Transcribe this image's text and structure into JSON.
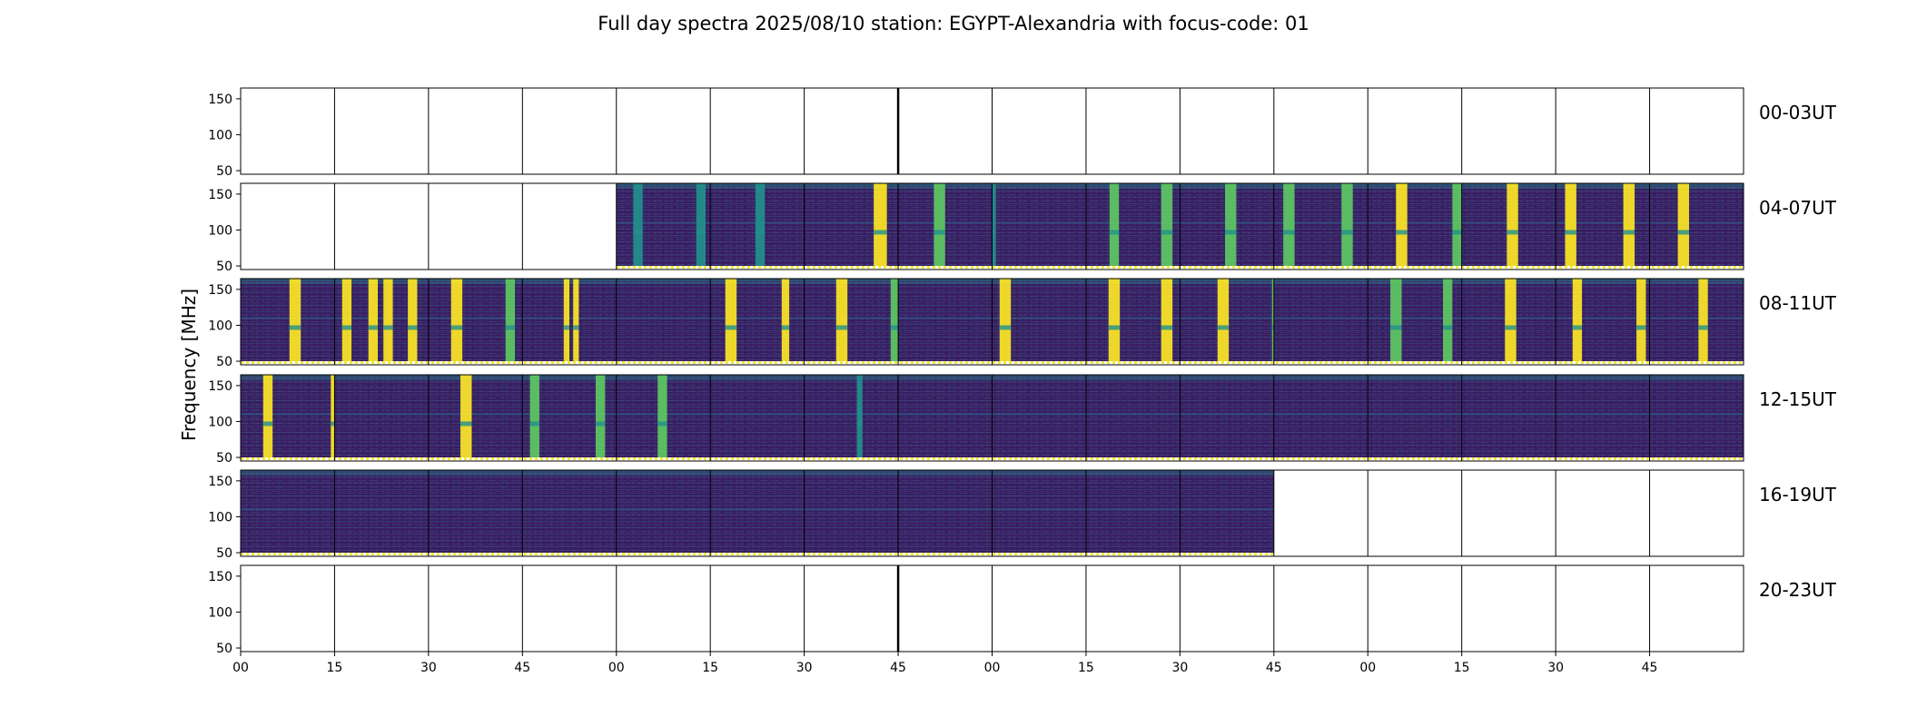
{
  "chart_data": {
    "type": "heatmap",
    "title": "Full day spectra 2025/08/10 station: EGYPT-Alexandria with focus-code: 01",
    "ylabel": "Frequency [MHz]",
    "xlabel": "",
    "ylim": [
      45,
      165
    ],
    "y_ticks": [
      "50",
      "100",
      "150"
    ],
    "x_ticks": [
      "00",
      "15",
      "30",
      "45",
      "00",
      "15",
      "30",
      "45",
      "00",
      "15",
      "30",
      "45",
      "00",
      "15",
      "30",
      "45"
    ],
    "row_labels": [
      "00-03UT",
      "04-07UT",
      "08-11UT",
      "12-15UT",
      "16-19UT",
      "20-23UT"
    ],
    "panels_per_row": 16,
    "panel_minutes": 15,
    "colormap": "viridis",
    "colors": {
      "empty": "#ffffff",
      "background": "#3b1f63",
      "dark": "#30125a",
      "mid": "#2f5f8d",
      "teal": "#21918c",
      "green": "#5ec962",
      "yellow": "#fde725",
      "marker": "#f4ea3a",
      "frame": "#000000"
    },
    "data_panels": [
      {
        "row": 1,
        "from": 4,
        "to": 15
      },
      {
        "row": 2,
        "from": 0,
        "to": 15
      },
      {
        "row": 3,
        "from": 0,
        "to": 15
      },
      {
        "row": 4,
        "from": 0,
        "to": 10
      }
    ],
    "bursts": [
      {
        "row": 1,
        "panel": 4,
        "x": [
          0.18,
          0.28
        ],
        "level": "teal"
      },
      {
        "row": 1,
        "panel": 4,
        "x": [
          0.85,
          0.95
        ],
        "level": "teal"
      },
      {
        "row": 1,
        "panel": 5,
        "x": [
          0.48,
          0.58
        ],
        "level": "teal"
      },
      {
        "row": 1,
        "panel": 6,
        "x": [
          0.74,
          0.88
        ],
        "level": "yellow"
      },
      {
        "row": 1,
        "panel": 7,
        "x": [
          0.38,
          0.5
        ],
        "level": "green"
      },
      {
        "row": 1,
        "panel": 8,
        "x": [
          0.0,
          0.04
        ],
        "level": "teal"
      },
      {
        "row": 1,
        "panel": 9,
        "x": [
          0.25,
          0.35
        ],
        "level": "green"
      },
      {
        "row": 1,
        "panel": 9,
        "x": [
          0.8,
          0.92
        ],
        "level": "green"
      },
      {
        "row": 1,
        "panel": 10,
        "x": [
          0.48,
          0.6
        ],
        "level": "green"
      },
      {
        "row": 1,
        "panel": 11,
        "x": [
          0.1,
          0.22
        ],
        "level": "green"
      },
      {
        "row": 1,
        "panel": 11,
        "x": [
          0.72,
          0.84
        ],
        "level": "green"
      },
      {
        "row": 1,
        "panel": 12,
        "x": [
          0.3,
          0.42
        ],
        "level": "yellow"
      },
      {
        "row": 1,
        "panel": 12,
        "x": [
          0.9,
          1.0
        ],
        "level": "green"
      },
      {
        "row": 1,
        "panel": 13,
        "x": [
          0.48,
          0.6
        ],
        "level": "yellow"
      },
      {
        "row": 1,
        "panel": 14,
        "x": [
          0.1,
          0.22
        ],
        "level": "yellow"
      },
      {
        "row": 1,
        "panel": 14,
        "x": [
          0.72,
          0.84
        ],
        "level": "yellow"
      },
      {
        "row": 1,
        "panel": 15,
        "x": [
          0.3,
          0.42
        ],
        "level": "yellow"
      },
      {
        "row": 2,
        "panel": 0,
        "x": [
          0.52,
          0.64
        ],
        "level": "yellow"
      },
      {
        "row": 2,
        "panel": 1,
        "x": [
          0.08,
          0.18
        ],
        "level": "yellow"
      },
      {
        "row": 2,
        "panel": 1,
        "x": [
          0.36,
          0.46
        ],
        "level": "yellow"
      },
      {
        "row": 2,
        "panel": 1,
        "x": [
          0.52,
          0.62
        ],
        "level": "yellow"
      },
      {
        "row": 2,
        "panel": 1,
        "x": [
          0.78,
          0.88
        ],
        "level": "yellow"
      },
      {
        "row": 2,
        "panel": 2,
        "x": [
          0.24,
          0.36
        ],
        "level": "yellow"
      },
      {
        "row": 2,
        "panel": 2,
        "x": [
          0.82,
          0.92
        ],
        "level": "green"
      },
      {
        "row": 2,
        "panel": 3,
        "x": [
          0.44,
          0.5
        ],
        "level": "yellow"
      },
      {
        "row": 2,
        "panel": 3,
        "x": [
          0.54,
          0.6
        ],
        "level": "yellow"
      },
      {
        "row": 2,
        "panel": 5,
        "x": [
          0.16,
          0.28
        ],
        "level": "yellow"
      },
      {
        "row": 2,
        "panel": 5,
        "x": [
          0.76,
          0.84
        ],
        "level": "yellow"
      },
      {
        "row": 2,
        "panel": 6,
        "x": [
          0.34,
          0.46
        ],
        "level": "yellow"
      },
      {
        "row": 2,
        "panel": 6,
        "x": [
          0.92,
          1.0
        ],
        "level": "green"
      },
      {
        "row": 2,
        "panel": 8,
        "x": [
          0.08,
          0.2
        ],
        "level": "yellow"
      },
      {
        "row": 2,
        "panel": 9,
        "x": [
          0.24,
          0.36
        ],
        "level": "yellow"
      },
      {
        "row": 2,
        "panel": 9,
        "x": [
          0.8,
          0.92
        ],
        "level": "yellow"
      },
      {
        "row": 2,
        "panel": 10,
        "x": [
          0.4,
          0.52
        ],
        "level": "yellow"
      },
      {
        "row": 2,
        "panel": 10,
        "x": [
          0.98,
          1.0
        ],
        "level": "green"
      },
      {
        "row": 2,
        "panel": 12,
        "x": [
          0.24,
          0.36
        ],
        "level": "green"
      },
      {
        "row": 2,
        "panel": 12,
        "x": [
          0.8,
          0.9
        ],
        "level": "green"
      },
      {
        "row": 2,
        "panel": 13,
        "x": [
          0.46,
          0.58
        ],
        "level": "yellow"
      },
      {
        "row": 2,
        "panel": 14,
        "x": [
          0.18,
          0.28
        ],
        "level": "yellow"
      },
      {
        "row": 2,
        "panel": 14,
        "x": [
          0.86,
          0.96
        ],
        "level": "yellow"
      },
      {
        "row": 2,
        "panel": 15,
        "x": [
          0.52,
          0.62
        ],
        "level": "yellow"
      },
      {
        "row": 3,
        "panel": 0,
        "x": [
          0.24,
          0.34
        ],
        "level": "yellow"
      },
      {
        "row": 3,
        "panel": 0,
        "x": [
          0.96,
          1.0
        ],
        "level": "yellow"
      },
      {
        "row": 3,
        "panel": 2,
        "x": [
          0.34,
          0.46
        ],
        "level": "yellow"
      },
      {
        "row": 3,
        "panel": 3,
        "x": [
          0.08,
          0.18
        ],
        "level": "green"
      },
      {
        "row": 3,
        "panel": 3,
        "x": [
          0.78,
          0.88
        ],
        "level": "green"
      },
      {
        "row": 3,
        "panel": 4,
        "x": [
          0.44,
          0.54
        ],
        "level": "green"
      },
      {
        "row": 3,
        "panel": 6,
        "x": [
          0.56,
          0.62
        ],
        "level": "teal"
      }
    ]
  }
}
